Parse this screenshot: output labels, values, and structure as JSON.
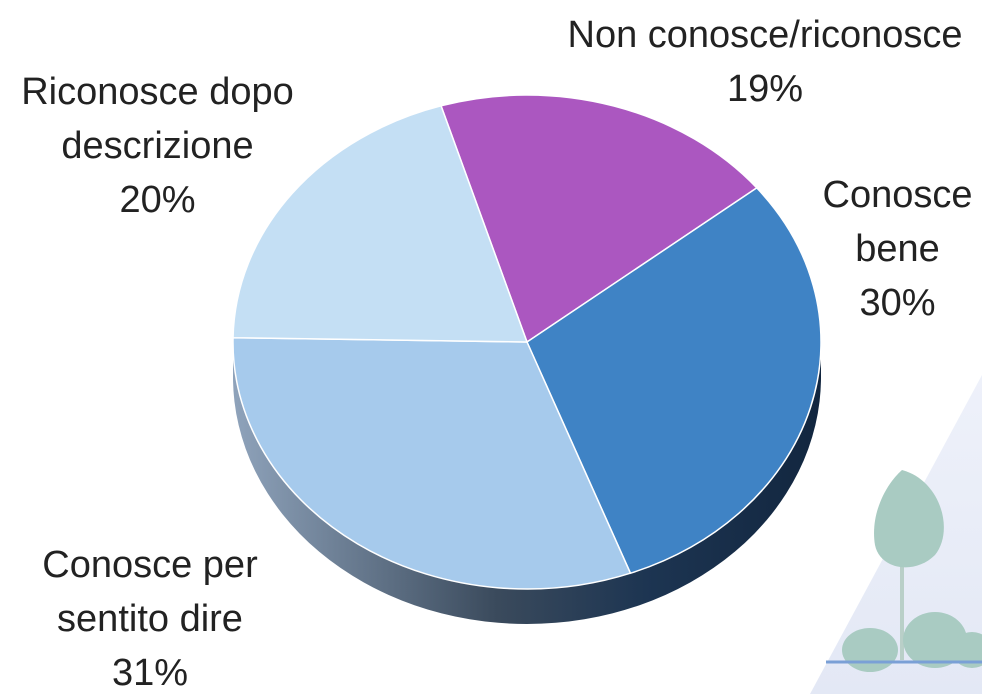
{
  "chart_data": {
    "type": "pie",
    "categories": [
      "Non conosce/riconosce",
      "Conosce bene",
      "Conosce per sentito dire",
      "Riconosce dopo descrizione"
    ],
    "values": [
      19,
      30,
      31,
      20
    ],
    "value_labels": [
      "19%",
      "30%",
      "31%",
      "20%"
    ],
    "colors": [
      "#ab57c0",
      "#3f83c5",
      "#a6caec",
      "#c4dff4"
    ]
  }
}
